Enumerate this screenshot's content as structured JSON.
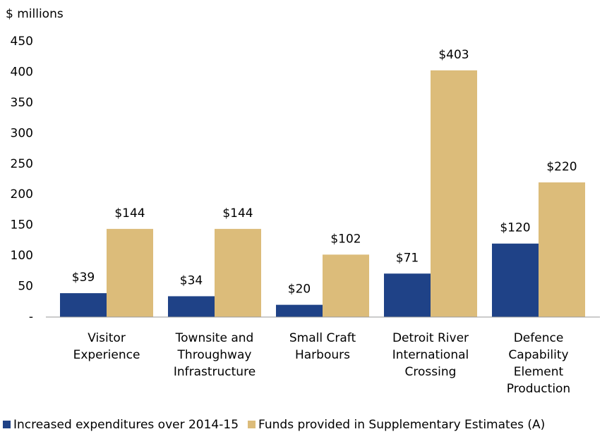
{
  "chart_data": {
    "type": "bar",
    "y_axis_label": "$ millions",
    "categories": [
      "Visitor\nExperience",
      "Townsite and\nThroughway\nInfrastructure",
      "Small Craft\nHarbours",
      "Detroit River\nInternational\nCrossing",
      "Defence\nCapability\nElement\nProduction"
    ],
    "series": [
      {
        "name": "Increased expenditures over 2014-15",
        "color": "#1f4287",
        "values": [
          39,
          34,
          20,
          71,
          120
        ],
        "value_labels": [
          "$39",
          "$34",
          "$20",
          "$71",
          "$120"
        ]
      },
      {
        "name": "Funds provided in Supplementary Estimates (A)",
        "color": "#dcbc7a",
        "values": [
          144,
          144,
          102,
          403,
          220
        ],
        "value_labels": [
          "$144",
          "$144",
          "$102",
          "$403",
          "$220"
        ]
      }
    ],
    "ylim": [
      0,
      450
    ],
    "yticks": [
      {
        "value": 0,
        "label": "-"
      },
      50,
      100,
      150,
      200,
      250,
      300,
      350,
      400,
      450
    ],
    "grid": false,
    "legend": "bottom"
  }
}
